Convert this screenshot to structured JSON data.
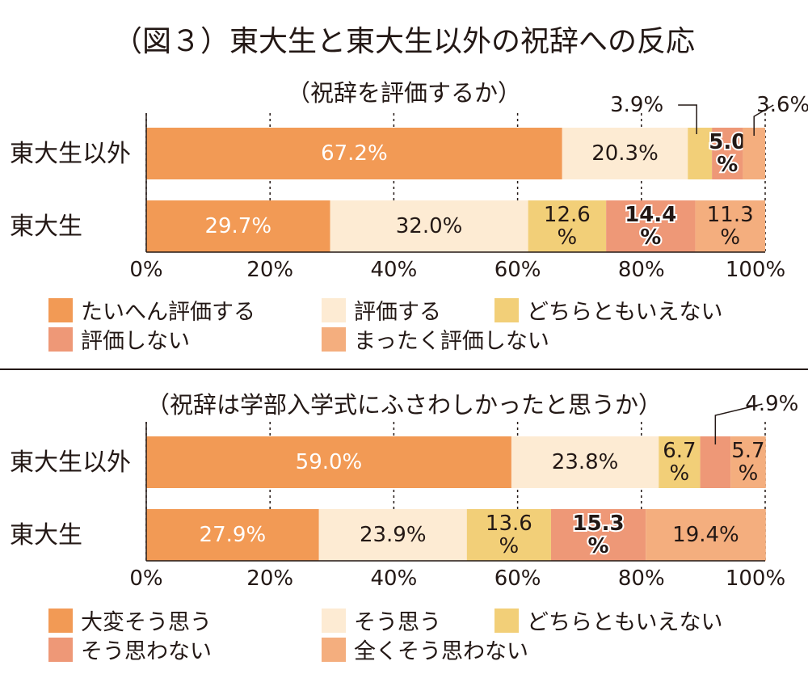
{
  "title": "（図３）東大生と東大生以外の祝辞への反応",
  "colors": {
    "c1": "#F29A55",
    "c2": "#FDEBD3",
    "c3": "#F2CF78",
    "c4": "#EE9877",
    "c5": "#F4AE7E"
  },
  "chart_data": [
    {
      "type": "bar",
      "orientation": "horizontal",
      "stacked": true,
      "title": "（祝辞を評価するか）",
      "categories": [
        "東大生以外",
        "東大生"
      ],
      "xlim": [
        0,
        100
      ],
      "xticks": [
        "0%",
        "20%",
        "40%",
        "60%",
        "80%",
        "100%"
      ],
      "grid": true,
      "legend_position": "bottom",
      "series": [
        {
          "name": "たいへん評価する",
          "values": [
            67.2,
            29.7
          ],
          "labels": [
            "67.2%",
            "29.7%"
          ]
        },
        {
          "name": "評価する",
          "values": [
            20.3,
            32.0
          ],
          "labels": [
            "20.3%",
            "32.0%"
          ]
        },
        {
          "name": "どちらともいえない",
          "values": [
            3.9,
            12.6
          ],
          "labels": [
            "3.9%",
            "12.6\n%"
          ]
        },
        {
          "name": "評価しない",
          "values": [
            5.0,
            14.4
          ],
          "labels": [
            "5.0\n%",
            "14.4\n%"
          ]
        },
        {
          "name": "まったく評価しない",
          "values": [
            3.6,
            11.3
          ],
          "labels": [
            "3.6%",
            "11.3\n%"
          ]
        }
      ]
    },
    {
      "type": "bar",
      "orientation": "horizontal",
      "stacked": true,
      "title": "（祝辞は学部入学式にふさわしかったと思うか）",
      "categories": [
        "東大生以外",
        "東大生"
      ],
      "xlim": [
        0,
        100
      ],
      "xticks": [
        "0%",
        "20%",
        "40%",
        "60%",
        "80%",
        "100%"
      ],
      "grid": true,
      "legend_position": "bottom",
      "series": [
        {
          "name": "大変そう思う",
          "values": [
            59.0,
            27.9
          ],
          "labels": [
            "59.0%",
            "27.9%"
          ]
        },
        {
          "name": "そう思う",
          "values": [
            23.8,
            23.9
          ],
          "labels": [
            "23.8%",
            "23.9%"
          ]
        },
        {
          "name": "どちらともいえない",
          "values": [
            6.7,
            13.6
          ],
          "labels": [
            "6.7\n%",
            "13.6\n%"
          ]
        },
        {
          "name": "そう思わない",
          "values": [
            4.9,
            15.3
          ],
          "labels": [
            "4.9%",
            "15.3\n%"
          ]
        },
        {
          "name": "全くそう思わない",
          "values": [
            5.7,
            19.4
          ],
          "labels": [
            "5.7\n%",
            "19.4%"
          ]
        }
      ]
    }
  ]
}
